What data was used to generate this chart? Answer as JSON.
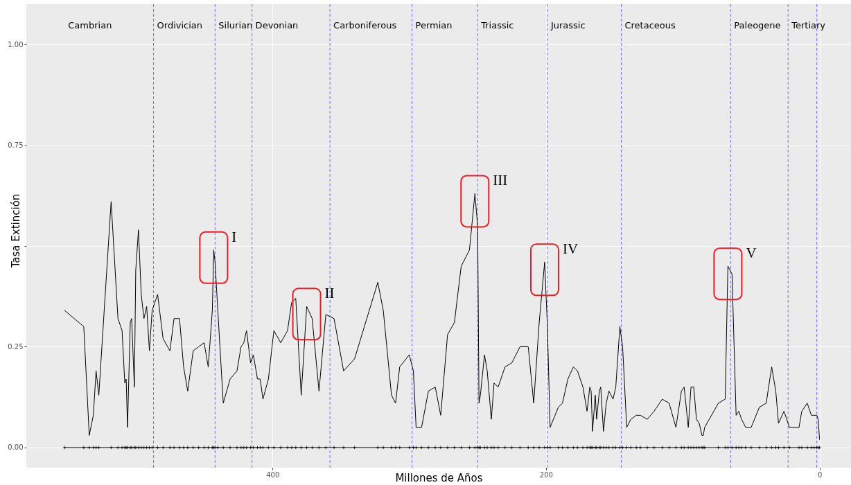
{
  "chart_data": {
    "type": "line",
    "xlabel": "Millones de Años",
    "ylabel": "Tasa Extinción",
    "xlim": [
      580,
      -23
    ],
    "xticks": [
      400,
      200,
      0
    ],
    "ylim": [
      -0.05,
      1.1
    ],
    "yticks": [
      {
        "value": 0,
        "label": "0.00"
      },
      0.25,
      {
        "value": 0.5,
        "label": null
      },
      0.75,
      {
        "value": 1,
        "label": "1.00"
      }
    ],
    "grid": true,
    "x": [
      552,
      538,
      534,
      531,
      529,
      527,
      518,
      513,
      510,
      508,
      507,
      506,
      504,
      503,
      501,
      500,
      498,
      496,
      494,
      492,
      490,
      488,
      484,
      480,
      475,
      472,
      468,
      465,
      462,
      458,
      454,
      450,
      447,
      444,
      443,
      442,
      440,
      436,
      431,
      426,
      423,
      421,
      419,
      416,
      414,
      411,
      409,
      407,
      403,
      399,
      394,
      389,
      386,
      383,
      379,
      375,
      371,
      366,
      361,
      355,
      348,
      340,
      323,
      319,
      313,
      310,
      307,
      300,
      297,
      295,
      291,
      286,
      281,
      277,
      272,
      267,
      262,
      256,
      252,
      250,
      249,
      248,
      245,
      243,
      240,
      238,
      235,
      230,
      225,
      219,
      213,
      209,
      205,
      201,
      199,
      197,
      191,
      188,
      184,
      180,
      177,
      173,
      170,
      168,
      167,
      166,
      164,
      163,
      161,
      160,
      158,
      156,
      154,
      151,
      149,
      146,
      144,
      141,
      138,
      134,
      131,
      126,
      121,
      115,
      110,
      105,
      101,
      99,
      96,
      94,
      92,
      90,
      88,
      86,
      85,
      84,
      74,
      69,
      67,
      64,
      61,
      59,
      57,
      54,
      50,
      44,
      39,
      35,
      32,
      30,
      26,
      22,
      15,
      13,
      9,
      6,
      4,
      2,
      1,
      0
    ],
    "series": [
      {
        "color": "#000000",
        "values": [
          0.34,
          0.3,
          0.03,
          0.08,
          0.19,
          0.13,
          0.61,
          0.32,
          0.29,
          0.16,
          0.17,
          0.05,
          0.31,
          0.32,
          0.15,
          0.44,
          0.54,
          0.38,
          0.32,
          0.35,
          0.24,
          0.34,
          0.38,
          0.27,
          0.24,
          0.32,
          0.32,
          0.2,
          0.14,
          0.24,
          0.25,
          0.26,
          0.2,
          0.34,
          0.49,
          0.46,
          0.34,
          0.11,
          0.17,
          0.19,
          0.25,
          0.26,
          0.29,
          0.21,
          0.23,
          0.17,
          0.17,
          0.12,
          0.17,
          0.29,
          0.26,
          0.29,
          0.36,
          0.37,
          0.13,
          0.35,
          0.32,
          0.14,
          0.33,
          0.32,
          0.19,
          0.22,
          0.41,
          0.34,
          0.13,
          0.11,
          0.2,
          0.23,
          0.19,
          0.05,
          0.05,
          0.14,
          0.15,
          0.08,
          0.28,
          0.31,
          0.45,
          0.49,
          0.63,
          0.55,
          0.11,
          0.13,
          0.23,
          0.19,
          0.07,
          0.16,
          0.15,
          0.2,
          0.21,
          0.25,
          0.25,
          0.11,
          0.31,
          0.46,
          0.3,
          0.05,
          0.1,
          0.11,
          0.17,
          0.2,
          0.19,
          0.15,
          0.09,
          0.15,
          0.14,
          0.04,
          0.13,
          0.07,
          0.14,
          0.15,
          0.04,
          0.11,
          0.14,
          0.12,
          0.15,
          0.3,
          0.25,
          0.05,
          0.07,
          0.08,
          0.08,
          0.07,
          0.09,
          0.12,
          0.11,
          0.05,
          0.14,
          0.15,
          0.05,
          0.15,
          0.15,
          0.07,
          0.06,
          0.03,
          0.03,
          0.05,
          0.11,
          0.12,
          0.45,
          0.43,
          0.08,
          0.09,
          0.07,
          0.05,
          0.05,
          0.1,
          0.11,
          0.2,
          0.14,
          0.06,
          0.09,
          0.05,
          0.05,
          0.09,
          0.11,
          0.08,
          0.08,
          0.08,
          0.07,
          0.02
        ]
      },
      {
        "color": "#000000",
        "marker": "cross",
        "values": [
          0,
          0,
          0,
          0,
          0,
          0,
          0,
          0,
          0,
          0,
          0,
          0,
          0,
          0,
          0,
          0,
          0,
          0,
          0,
          0,
          0,
          0,
          0,
          0,
          0,
          0,
          0,
          0,
          0,
          0,
          0,
          0,
          0,
          0,
          0,
          0,
          0,
          0,
          0,
          0,
          0,
          0,
          0,
          0,
          0,
          0,
          0,
          0,
          0,
          0,
          0,
          0,
          0,
          0,
          0,
          0,
          0,
          0,
          0,
          0,
          0,
          0,
          0,
          0,
          0,
          0,
          0,
          0,
          0,
          0,
          0,
          0,
          0,
          0,
          0,
          0,
          0,
          0,
          0,
          0,
          0,
          0,
          0,
          0,
          0,
          0,
          0,
          0,
          0,
          0,
          0,
          0,
          0,
          0,
          0,
          0,
          0,
          0,
          0,
          0,
          0,
          0,
          0,
          0,
          0,
          0,
          0,
          0,
          0,
          0,
          0,
          0,
          0,
          0,
          0,
          0,
          0,
          0,
          0,
          0,
          0,
          0,
          0,
          0,
          0,
          0,
          0,
          0,
          0,
          0,
          0,
          0,
          0,
          0,
          0,
          0,
          0,
          0,
          0,
          0,
          0,
          0,
          0,
          0,
          0,
          0,
          0,
          0,
          0,
          0,
          0,
          0,
          0,
          0,
          0,
          0,
          0,
          0,
          0,
          0
        ]
      }
    ],
    "ref_lines": [
      {
        "axis": "x",
        "value": 487,
        "color": "#6b6bff",
        "line_style": "dashed"
      },
      {
        "axis": "x",
        "value": 442,
        "color": "#6b6bff",
        "line_style": "dashed"
      },
      {
        "axis": "x",
        "value": 415,
        "color": "#6b6bff",
        "line_style": "dashed"
      },
      {
        "axis": "x",
        "value": 358,
        "color": "#6b6bff",
        "line_style": "dashed"
      },
      {
        "axis": "x",
        "value": 298,
        "color": "#6b6bff",
        "line_style": "dashed"
      },
      {
        "axis": "x",
        "value": 250,
        "color": "#6b6bff",
        "line_style": "dashed"
      },
      {
        "axis": "x",
        "value": 199,
        "color": "#6b6bff",
        "line_style": "dashed"
      },
      {
        "axis": "x",
        "value": 145,
        "color": "#6b6bff",
        "line_style": "dashed"
      },
      {
        "axis": "x",
        "value": 65,
        "color": "#6b6bff",
        "line_style": "dashed"
      },
      {
        "axis": "x",
        "value": 23,
        "color": "#6b6bff",
        "line_style": "dashed"
      },
      {
        "axis": "x",
        "value": 2,
        "color": "#6b6bff",
        "line_style": "dashed"
      }
    ],
    "annotations": [
      "Cambrian",
      "Ordivician",
      "Silurian",
      "Devonian",
      "Carboniferous",
      "Permian",
      "Triassic",
      "Jurassic",
      "Cretaceous",
      "Paleogene",
      "Tertiary",
      {
        "text": "I",
        "x": 443,
        "y": 0.49
      },
      {
        "text": "II",
        "x": 375,
        "y": 0.35
      },
      {
        "text": "III",
        "x": 252,
        "y": 0.63
      },
      {
        "text": "IV",
        "x": 201,
        "y": 0.46
      },
      {
        "text": "V",
        "x": 67,
        "y": 0.45
      }
    ]
  }
}
